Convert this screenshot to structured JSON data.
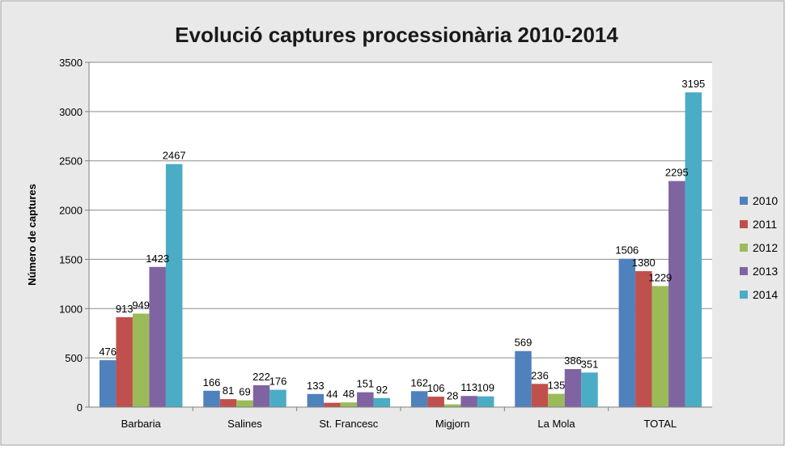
{
  "chart_data": {
    "type": "bar",
    "title": "Evolució captures processionària 2010-2014",
    "xlabel": "",
    "ylabel": "Número de captures",
    "ylim": [
      0,
      3500
    ],
    "yticks": [
      0,
      500,
      1000,
      1500,
      2000,
      2500,
      3000,
      3500
    ],
    "grid": true,
    "legend_position": "right",
    "categories": [
      "Barbaria",
      "Salines",
      "St. Francesc",
      "Migjorn",
      "La Mola",
      "TOTAL"
    ],
    "series": [
      {
        "name": "2010",
        "color": "#4f81bd",
        "values": [
          476,
          166,
          133,
          162,
          569,
          1506
        ]
      },
      {
        "name": "2011",
        "color": "#c0504d",
        "values": [
          913,
          81,
          44,
          106,
          236,
          1380
        ]
      },
      {
        "name": "2012",
        "color": "#9bbb59",
        "values": [
          949,
          69,
          48,
          28,
          135,
          1229
        ]
      },
      {
        "name": "2013",
        "color": "#8064a2",
        "values": [
          1423,
          222,
          151,
          113,
          386,
          2295
        ]
      },
      {
        "name": "2014",
        "color": "#4bacc6",
        "values": [
          2467,
          176,
          92,
          109,
          351,
          3195
        ]
      }
    ]
  }
}
